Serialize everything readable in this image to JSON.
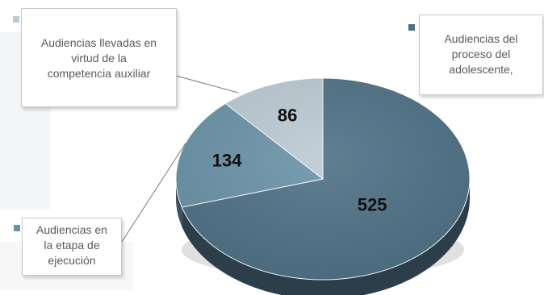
{
  "chart_data": {
    "type": "pie",
    "title": "",
    "slices": [
      {
        "label": "Audiencias del\nproceso del\nadolescente,",
        "value": 525,
        "color": "#4f7186"
      },
      {
        "label": "Audiencias en\nla etapa de\nejecución",
        "value": 134,
        "color": "#6b93a8"
      },
      {
        "label": "Audiencias llevadas en\nvirtud de la\ncompetencia auxiliar",
        "value": 86,
        "color": "#bccad3"
      }
    ],
    "legend": "callouts",
    "style": "3d-pie"
  }
}
